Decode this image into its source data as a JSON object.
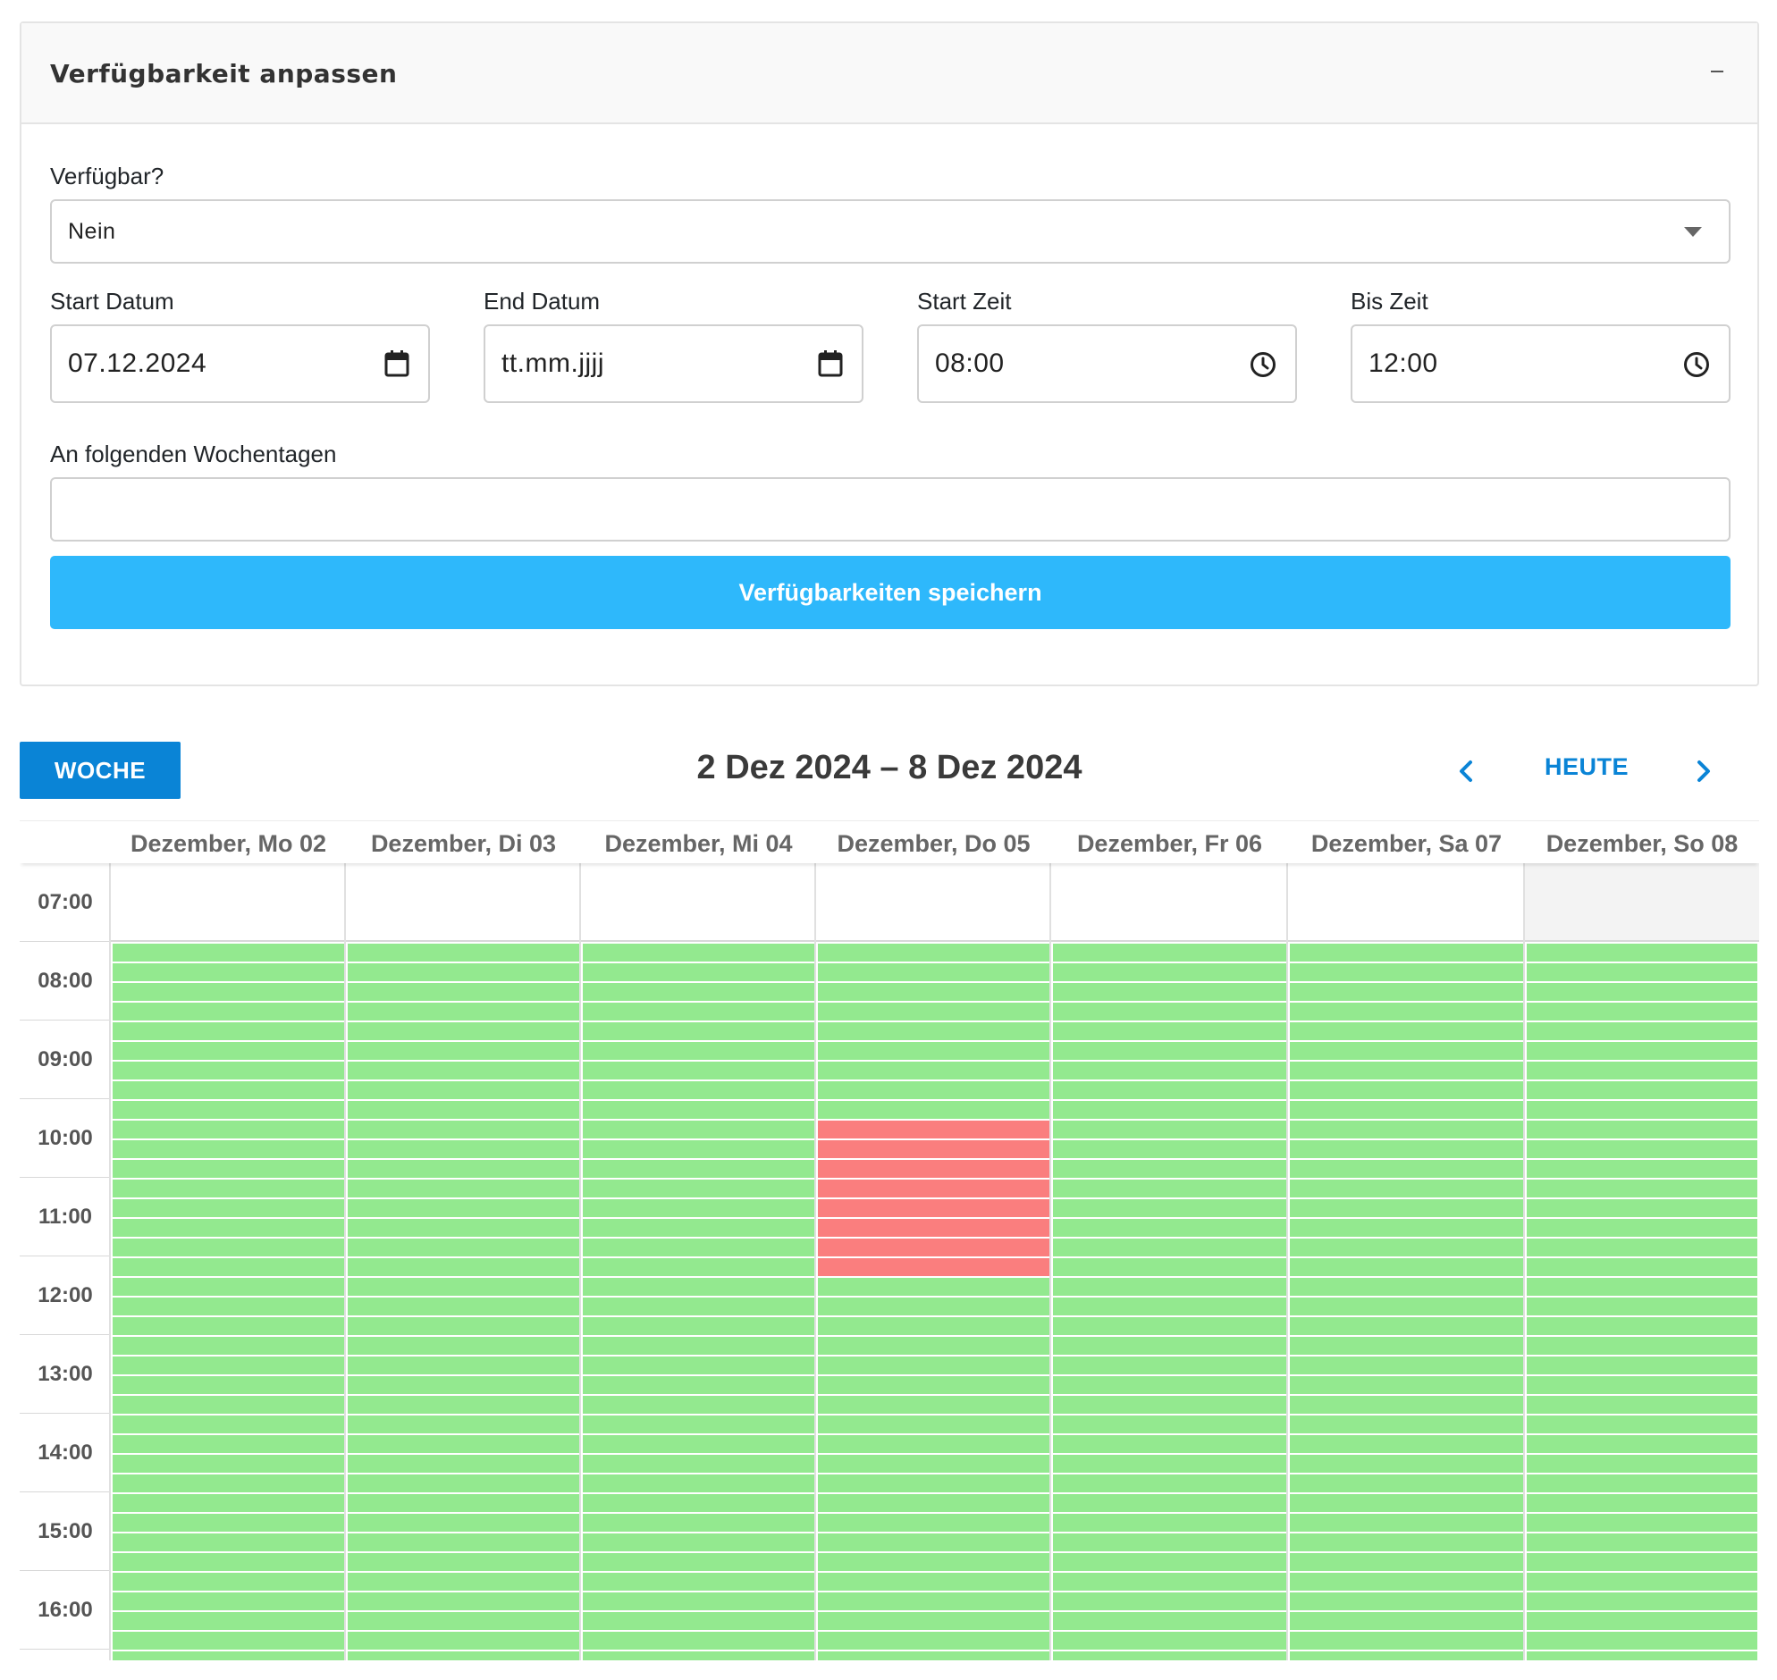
{
  "card": {
    "title": "Verfügbarkeit anpassen",
    "available_label": "Verfügbar?",
    "available_value": "Nein",
    "start_date_label": "Start Datum",
    "start_date_value": "07.12.2024",
    "end_date_label": "End Datum",
    "end_date_placeholder": "tt.mm.jjjj",
    "start_time_label": "Start Zeit",
    "start_time_value": "08:00",
    "end_time_label": "Bis Zeit",
    "end_time_value": "12:00",
    "weekdays_label": "An folgenden Wochentagen",
    "weekdays_value": "",
    "save_label": "Verfügbarkeiten speichern"
  },
  "calendar": {
    "view_label": "WOCHE",
    "range_title": "2 Dez 2024 – 8 Dez 2024",
    "today_label": "HEUTE",
    "days": [
      "Dezember, Mo 02",
      "Dezember, Di 03",
      "Dezember, Mi 04",
      "Dezember, Do 05",
      "Dezember, Fr 06",
      "Dezember, Sa 07",
      "Dezember, So 08"
    ],
    "hours": [
      "07:00",
      "08:00",
      "09:00",
      "10:00",
      "11:00",
      "12:00",
      "13:00",
      "14:00",
      "15:00",
      "16:00"
    ],
    "availability": {
      "available_from": "08:00",
      "unavailable_block": {
        "day": "Dezember, Do 05",
        "from": "10:00",
        "to": "12:00"
      }
    },
    "colors": {
      "available": "#93e98f",
      "unavailable": "#fa7e7e",
      "accent": "#0a84d6",
      "save_button": "#2eb8fb"
    }
  }
}
